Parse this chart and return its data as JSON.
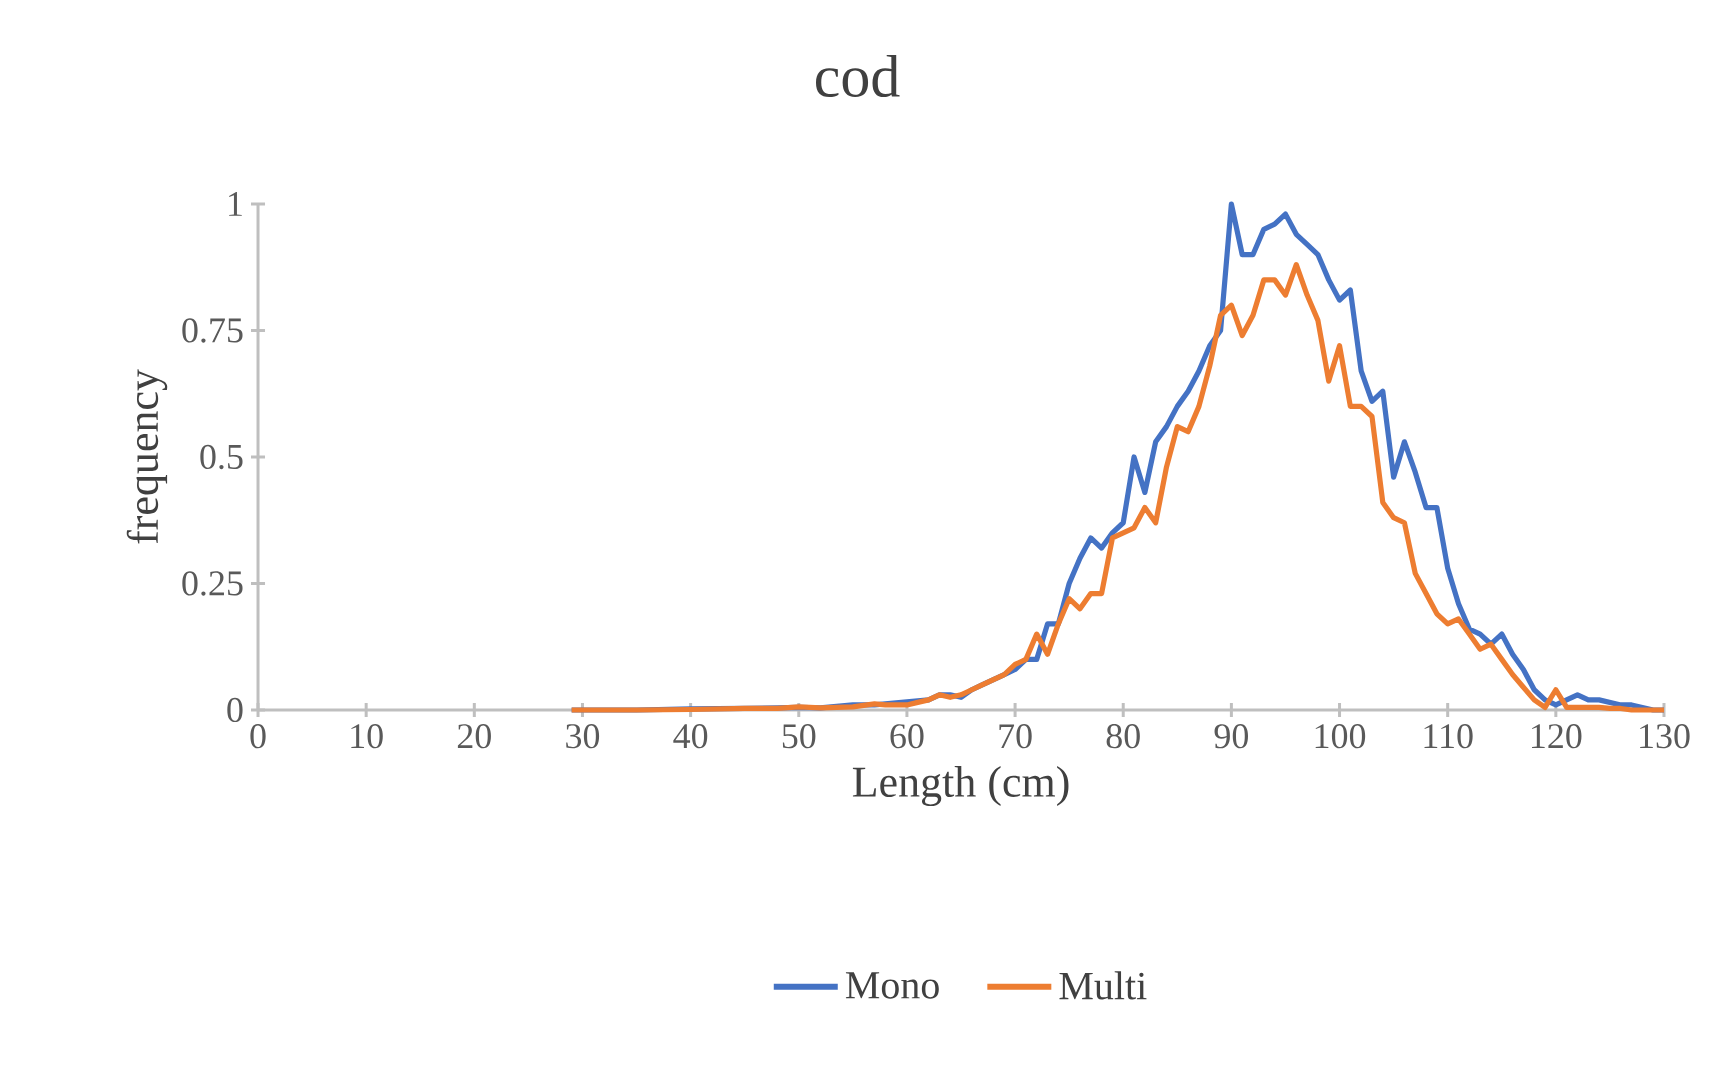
{
  "chart_data": {
    "type": "line",
    "title": "cod",
    "xlabel": "Length (cm)",
    "ylabel": "frequency",
    "x": [
      29,
      35,
      40,
      45,
      48,
      50,
      52,
      55,
      57,
      58,
      60,
      61,
      62,
      63,
      64,
      65,
      66,
      67,
      68,
      69,
      70,
      71,
      72,
      73,
      74,
      75,
      76,
      77,
      78,
      79,
      80,
      81,
      82,
      83,
      84,
      85,
      86,
      87,
      88,
      89,
      90,
      91,
      92,
      93,
      94,
      95,
      96,
      97,
      98,
      99,
      100,
      101,
      102,
      103,
      104,
      105,
      106,
      107,
      108,
      109,
      110,
      111,
      112,
      113,
      114,
      115,
      116,
      117,
      118,
      119,
      120,
      121,
      122,
      123,
      124,
      125,
      126,
      127,
      128,
      129,
      130
    ],
    "series": [
      {
        "name": "Mono",
        "color": "#4472c4",
        "values": [
          0,
          0,
          0.002,
          0.003,
          0.004,
          0.005,
          0.004,
          0.01,
          0.01,
          0.012,
          0.016,
          0.018,
          0.02,
          0.03,
          0.03,
          0.025,
          0.04,
          0.05,
          0.06,
          0.07,
          0.08,
          0.1,
          0.1,
          0.17,
          0.17,
          0.25,
          0.3,
          0.34,
          0.32,
          0.35,
          0.37,
          0.5,
          0.43,
          0.53,
          0.56,
          0.6,
          0.63,
          0.67,
          0.72,
          0.75,
          1.0,
          0.9,
          0.9,
          0.95,
          0.96,
          0.98,
          0.94,
          0.92,
          0.9,
          0.85,
          0.81,
          0.83,
          0.67,
          0.61,
          0.63,
          0.46,
          0.53,
          0.47,
          0.4,
          0.4,
          0.28,
          0.21,
          0.16,
          0.15,
          0.13,
          0.15,
          0.11,
          0.08,
          0.04,
          0.02,
          0.01,
          0.02,
          0.03,
          0.02,
          0.02,
          0.015,
          0.01,
          0.01,
          0.005,
          0,
          0
        ]
      },
      {
        "name": "Multi",
        "color": "#ed7d31",
        "values": [
          0,
          0,
          0.001,
          0.003,
          0.003,
          0.006,
          0.004,
          0.006,
          0.012,
          0.01,
          0.01,
          0.015,
          0.02,
          0.03,
          0.025,
          0.03,
          0.04,
          0.05,
          0.06,
          0.07,
          0.09,
          0.1,
          0.15,
          0.11,
          0.17,
          0.22,
          0.2,
          0.23,
          0.23,
          0.34,
          0.35,
          0.36,
          0.4,
          0.37,
          0.48,
          0.56,
          0.55,
          0.6,
          0.68,
          0.78,
          0.8,
          0.74,
          0.78,
          0.85,
          0.85,
          0.82,
          0.88,
          0.82,
          0.77,
          0.65,
          0.72,
          0.6,
          0.6,
          0.58,
          0.41,
          0.38,
          0.37,
          0.27,
          0.23,
          0.19,
          0.17,
          0.18,
          0.15,
          0.12,
          0.13,
          0.1,
          0.07,
          0.045,
          0.02,
          0.005,
          0.04,
          0.005,
          0.005,
          0.005,
          0.005,
          0.003,
          0.003,
          0,
          0,
          0,
          0
        ]
      }
    ],
    "xlim": [
      0,
      130
    ],
    "xticks": [
      0,
      10,
      20,
      30,
      40,
      50,
      60,
      70,
      80,
      90,
      100,
      110,
      120,
      130
    ],
    "ylim": [
      0,
      1
    ],
    "yticks": [
      0,
      0.25,
      0.5,
      0.75,
      1
    ],
    "grid": false,
    "legend": "bottom",
    "line_style": "solid",
    "marker": "none"
  }
}
